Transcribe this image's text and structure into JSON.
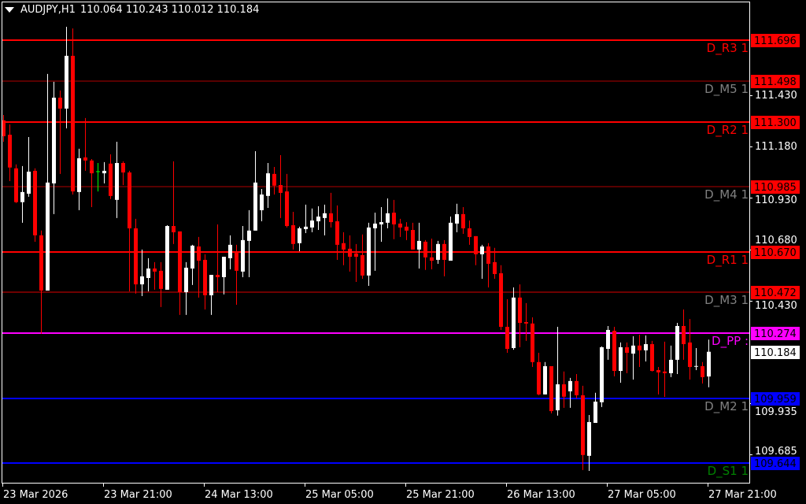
{
  "header": {
    "symbol": "AUDJPY,H1",
    "ohlc": "110.064 110.243 110.012 110.184"
  },
  "colors": {
    "background": "#000000",
    "bull": "#ffffff",
    "bear": "#ff0000",
    "doji": "#00ff00",
    "axis": "#ffffff"
  },
  "price_scale": {
    "top_price": 111.696,
    "bottom_price": 109.644,
    "ticks": [
      "111.430",
      "111.180",
      "110.930",
      "110.680",
      "110.430",
      "109.935",
      "109.685"
    ],
    "current_price": "110.184"
  },
  "time_axis": {
    "labels": [
      "23 Mar 2026",
      "23 Mar 21:00",
      "24 Mar 13:00",
      "25 Mar 05:00",
      "25 Mar 21:00",
      "26 Mar 13:00",
      "27 Mar 05:00",
      "27 Mar 21:00"
    ],
    "bars_per_label": 16
  },
  "levels": [
    {
      "name": "D_R3",
      "text": "D_R3 1",
      "price": "111.696",
      "line_color": "#ff0000",
      "label_color": "#ff0000",
      "box_color": "#ff0000",
      "thick": true
    },
    {
      "name": "D_M5",
      "text": "D_M5 1",
      "price": "111.498",
      "line_color": "#b00000",
      "label_color": "#808080",
      "box_color": "#ff0000",
      "thick": false
    },
    {
      "name": "D_R2",
      "text": "D_R2 1",
      "price": "111.300",
      "line_color": "#ff0000",
      "label_color": "#ff0000",
      "box_color": "#ff0000",
      "thick": true
    },
    {
      "name": "D_M4",
      "text": "D_M4 1",
      "price": "110.985",
      "line_color": "#b00000",
      "label_color": "#808080",
      "box_color": "#ff0000",
      "thick": false
    },
    {
      "name": "D_R1",
      "text": "D_R1 1",
      "price": "110.670",
      "line_color": "#ff0000",
      "label_color": "#ff0000",
      "box_color": "#ff0000",
      "thick": true
    },
    {
      "name": "D_M3",
      "text": "D_M3 1",
      "price": "110.472",
      "line_color": "#dd0000",
      "label_color": "#808080",
      "box_color": "#ff0000",
      "thick": false
    },
    {
      "name": "D_PP",
      "text": "D_PP :",
      "price": "110.274",
      "line_color": "#ff00ff",
      "label_color": "#ff00ff",
      "box_color": "#ff00ff",
      "thick": true
    },
    {
      "name": "D_M2",
      "text": "D_M2 1",
      "price": "109.959",
      "line_color": "#0000ff",
      "label_color": "#808080",
      "box_color": "#0000ff",
      "thick": true
    },
    {
      "name": "D_S1",
      "text": "D_S1 1",
      "price": "109.644",
      "line_color": "#0000ff",
      "label_color": "#008000",
      "box_color": "#0000ff",
      "thick": true
    }
  ],
  "chart_data": {
    "type": "candlestick",
    "symbol": "AUDJPY",
    "timeframe": "H1",
    "ylim": [
      109.644,
      111.696
    ],
    "columns": [
      "open",
      "high",
      "low",
      "close"
    ],
    "candles": [
      [
        111.307,
        111.333,
        111.203,
        111.23
      ],
      [
        111.237,
        111.287,
        111.012,
        111.078
      ],
      [
        111.074,
        111.093,
        110.906,
        110.91
      ],
      [
        110.91,
        111.085,
        110.81,
        110.959
      ],
      [
        110.951,
        111.226,
        110.936,
        111.058
      ],
      [
        111.062,
        111.074,
        110.718,
        110.749
      ],
      [
        110.749,
        110.772,
        110.271,
        110.481
      ],
      [
        110.481,
        111.532,
        110.481,
        111.005
      ],
      [
        111.001,
        111.494,
        110.852,
        111.417
      ],
      [
        111.417,
        111.452,
        111.047,
        111.364
      ],
      [
        111.364,
        111.761,
        111.268,
        111.62
      ],
      [
        111.62,
        111.753,
        110.947,
        110.962
      ],
      [
        110.959,
        111.169,
        110.871,
        111.123
      ],
      [
        111.127,
        111.318,
        111.062,
        111.112
      ],
      [
        111.112,
        111.119,
        110.886,
        111.05
      ],
      [
        111.058,
        111.1,
        110.962,
        111.058
      ],
      [
        111.05,
        111.104,
        111.001,
        111.062
      ],
      [
        111.097,
        111.142,
        110.925,
        110.94
      ],
      [
        110.921,
        111.203,
        110.833,
        111.1
      ],
      [
        111.1,
        111.108,
        110.993,
        111.054
      ],
      [
        111.054,
        111.062,
        110.477,
        110.783
      ],
      [
        110.783,
        110.829,
        110.466,
        110.511
      ],
      [
        110.511,
        110.68,
        110.454,
        110.55
      ],
      [
        110.542,
        110.638,
        110.477,
        110.588
      ],
      [
        110.588,
        110.619,
        110.485,
        110.573
      ],
      [
        110.577,
        110.619,
        110.401,
        110.489
      ],
      [
        110.485,
        110.798,
        110.485,
        110.794
      ],
      [
        110.794,
        111.108,
        110.707,
        110.764
      ],
      [
        110.768,
        110.768,
        110.363,
        110.473
      ],
      [
        110.473,
        110.619,
        110.363,
        110.592
      ],
      [
        110.588,
        110.703,
        110.508,
        110.699
      ],
      [
        110.695,
        110.741,
        110.447,
        110.626
      ],
      [
        110.63,
        110.657,
        110.389,
        110.458
      ],
      [
        110.458,
        110.557,
        110.363,
        110.557
      ],
      [
        110.557,
        110.802,
        110.473,
        110.546
      ],
      [
        110.546,
        110.645,
        110.462,
        110.645
      ],
      [
        110.638,
        110.749,
        110.584,
        110.703
      ],
      [
        110.668,
        110.703,
        110.412,
        110.577
      ],
      [
        110.573,
        110.794,
        110.546,
        110.726
      ],
      [
        110.722,
        110.871,
        110.546,
        110.772
      ],
      [
        110.772,
        111.157,
        110.772,
        111.005
      ],
      [
        110.871,
        110.974,
        110.817,
        110.947
      ],
      [
        110.94,
        111.1,
        110.882,
        111.05
      ],
      [
        111.047,
        111.081,
        110.947,
        110.99
      ],
      [
        110.993,
        111.138,
        110.833,
        110.955
      ],
      [
        110.962,
        111.047,
        110.787,
        110.794
      ],
      [
        110.798,
        110.863,
        110.68,
        110.707
      ],
      [
        110.711,
        110.791,
        110.672,
        110.783
      ],
      [
        110.779,
        110.898,
        110.76,
        110.791
      ],
      [
        110.787,
        110.879,
        110.764,
        110.821
      ],
      [
        110.817,
        110.89,
        110.775,
        110.84
      ],
      [
        110.833,
        110.898,
        110.749,
        110.856
      ],
      [
        110.856,
        110.955,
        110.787,
        110.813
      ],
      [
        110.817,
        110.894,
        110.63,
        110.703
      ],
      [
        110.711,
        110.764,
        110.604,
        110.68
      ],
      [
        110.684,
        110.749,
        110.573,
        110.645
      ],
      [
        110.661,
        110.707,
        110.523,
        110.645
      ],
      [
        110.653,
        110.753,
        110.538,
        110.554
      ],
      [
        110.554,
        110.81,
        110.504,
        110.787
      ],
      [
        110.783,
        110.859,
        110.577,
        110.806
      ],
      [
        110.802,
        110.886,
        110.718,
        110.813
      ],
      [
        110.81,
        110.928,
        110.783,
        110.856
      ],
      [
        110.859,
        110.921,
        110.73,
        110.802
      ],
      [
        110.806,
        110.829,
        110.741,
        110.787
      ],
      [
        110.791,
        110.813,
        110.726,
        110.772
      ],
      [
        110.775,
        110.81,
        110.68,
        110.68
      ],
      [
        110.68,
        110.81,
        110.588,
        110.722
      ],
      [
        110.718,
        110.726,
        110.581,
        110.642
      ],
      [
        110.642,
        110.733,
        110.584,
        110.626
      ],
      [
        110.63,
        110.722,
        110.611,
        110.707
      ],
      [
        110.707,
        110.726,
        110.55,
        110.63
      ],
      [
        110.626,
        110.84,
        110.626,
        110.81
      ],
      [
        110.806,
        110.902,
        110.764,
        110.852
      ],
      [
        110.852,
        110.886,
        110.756,
        110.783
      ],
      [
        110.783,
        110.821,
        110.703,
        110.741
      ],
      [
        110.745,
        110.745,
        110.604,
        110.657
      ],
      [
        110.657,
        110.703,
        110.538,
        110.695
      ],
      [
        110.695,
        110.711,
        110.496,
        110.611
      ],
      [
        110.619,
        110.688,
        110.538,
        110.561
      ],
      [
        110.565,
        110.604,
        110.29,
        110.305
      ],
      [
        110.305,
        110.439,
        110.179,
        110.198
      ],
      [
        110.202,
        110.496,
        110.194,
        110.447
      ],
      [
        110.447,
        110.511,
        110.206,
        110.324
      ],
      [
        110.328,
        110.42,
        110.237,
        110.321
      ],
      [
        110.321,
        110.351,
        110.11,
        110.134
      ],
      [
        110.134,
        110.179,
        109.973,
        109.977
      ],
      [
        109.977,
        110.134,
        109.977,
        110.114
      ],
      [
        110.114,
        110.114,
        109.885,
        109.896
      ],
      [
        109.9,
        110.305,
        109.874,
        110.026
      ],
      [
        110.026,
        110.088,
        109.912,
        109.966
      ],
      [
        109.992,
        110.057,
        109.912,
        110.042
      ],
      [
        110.042,
        110.076,
        109.958,
        109.973
      ],
      [
        109.973,
        110.019,
        109.61,
        109.683
      ],
      [
        109.679,
        109.877,
        109.606,
        109.843
      ],
      [
        109.839,
        109.985,
        109.839,
        109.942
      ],
      [
        109.939,
        110.21,
        109.916,
        110.206
      ],
      [
        110.198,
        110.309,
        110.145,
        110.29
      ],
      [
        110.286,
        110.305,
        110.065,
        110.091
      ],
      [
        110.091,
        110.229,
        110.034,
        110.206
      ],
      [
        110.206,
        110.229,
        110.08,
        110.179
      ],
      [
        110.175,
        110.259,
        110.049,
        110.214
      ],
      [
        110.214,
        110.267,
        110.11,
        110.191
      ],
      [
        110.191,
        110.263,
        110.137,
        110.221
      ],
      [
        110.221,
        110.237,
        110.088,
        110.091
      ],
      [
        110.095,
        110.11,
        109.977,
        110.084
      ],
      [
        110.088,
        110.233,
        109.965,
        110.08
      ],
      [
        110.08,
        110.214,
        110.061,
        110.145
      ],
      [
        110.145,
        110.324,
        110.076,
        110.309
      ],
      [
        110.309,
        110.389,
        110.145,
        110.221
      ],
      [
        110.229,
        110.343,
        110.049,
        110.11
      ],
      [
        110.114,
        110.202,
        110.095,
        110.115
      ],
      [
        110.114,
        110.134,
        110.03,
        110.061
      ],
      [
        110.064,
        110.243,
        110.012,
        110.184
      ]
    ]
  }
}
